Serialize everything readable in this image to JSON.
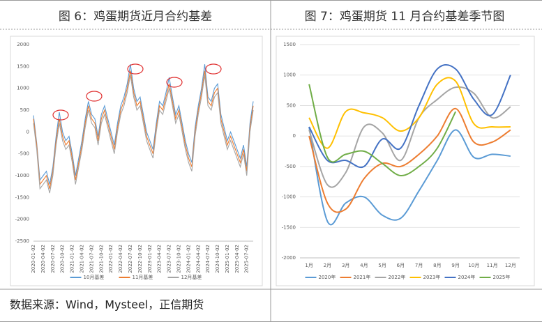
{
  "source": "数据来源：Wind，Mysteel，正信期货",
  "chart_data": [
    {
      "type": "line",
      "title": "图 6：鸡蛋期货近月合约基差",
      "smooth": false,
      "categories": [
        "2020-01-02",
        null,
        null,
        "2020-04-02",
        null,
        null,
        "2020-07-02",
        null,
        null,
        "2020-10-02",
        null,
        null,
        "2021-01-02",
        null,
        null,
        "2021-04-02",
        null,
        null,
        "2021-07-02",
        null,
        null,
        "2021-10-02",
        null,
        null,
        "2022-01-02",
        null,
        null,
        "2022-04-02",
        null,
        null,
        "2022-07-02",
        null,
        null,
        "2022-10-02",
        null,
        null,
        "2023-01-02",
        null,
        null,
        "2023-04-02",
        null,
        null,
        "2023-07-02",
        null,
        null,
        "2023-10-02",
        null,
        null,
        "2024-01-02",
        null,
        null,
        "2024-04-02",
        null,
        null,
        "2024-07-02",
        null,
        null,
        "2024-10-02",
        null,
        null,
        "2025-01-02",
        null,
        null,
        "2025-04-02",
        null,
        null,
        "2025-07-02",
        null,
        null
      ],
      "series": [
        {
          "name": "10月基差",
          "color": "#5b9bd5",
          "values": [
            380,
            -250,
            -1100,
            -1000,
            -900,
            -1200,
            -800,
            -100,
            450,
            0,
            -200,
            -100,
            -500,
            -1000,
            -600,
            -200,
            300,
            700,
            400,
            300,
            -100,
            400,
            600,
            300,
            0,
            -300,
            200,
            600,
            800,
            1100,
            1550,
            1000,
            700,
            800,
            400,
            0,
            -200,
            -400,
            200,
            700,
            600,
            900,
            1250,
            800,
            400,
            600,
            200,
            -200,
            -500,
            -700,
            100,
            600,
            1000,
            1550,
            800,
            700,
            1000,
            1100,
            400,
            100,
            -200,
            0,
            -200,
            -400,
            -600,
            -300,
            -800,
            200,
            700
          ]
        },
        {
          "name": "11月基差",
          "color": "#ed7d31",
          "values": [
            300,
            -300,
            -1200,
            -1100,
            -1000,
            -1300,
            -900,
            -200,
            300,
            -100,
            -300,
            -200,
            -600,
            -1100,
            -700,
            -300,
            200,
            600,
            300,
            200,
            -200,
            300,
            500,
            200,
            -100,
            -400,
            100,
            500,
            700,
            1000,
            1400,
            900,
            600,
            700,
            300,
            -100,
            -300,
            -500,
            100,
            600,
            500,
            800,
            1100,
            700,
            300,
            500,
            100,
            -300,
            -600,
            -800,
            0,
            500,
            900,
            1400,
            700,
            600,
            900,
            1000,
            300,
            0,
            -300,
            -100,
            -300,
            -500,
            -700,
            -400,
            -900,
            100,
            600
          ]
        },
        {
          "name": "12月基差",
          "color": "#a5a5a5",
          "values": [
            200,
            -400,
            -1300,
            -1200,
            -1100,
            -1400,
            -1000,
            -300,
            200,
            -200,
            -400,
            -300,
            -700,
            -1200,
            -800,
            -400,
            100,
            500,
            200,
            100,
            -300,
            200,
            400,
            100,
            -200,
            -500,
            0,
            400,
            600,
            900,
            1300,
            800,
            500,
            600,
            200,
            -200,
            -400,
            -600,
            0,
            500,
            400,
            700,
            1000,
            600,
            200,
            400,
            0,
            -400,
            -700,
            -900,
            -100,
            400,
            800,
            1300,
            600,
            500,
            800,
            900,
            200,
            -100,
            -400,
            -200,
            -400,
            -600,
            -800,
            -500,
            -1000,
            0,
            500
          ]
        }
      ],
      "ylim": [
        -2500,
        2000
      ],
      "yticks": [
        -2500,
        -2000,
        -1500,
        -1000,
        -500,
        0,
        500,
        1000,
        1500,
        2000
      ],
      "grid": false,
      "legend": "bottom"
    },
    {
      "type": "line",
      "title": "图 7：鸡蛋期货 11 月合约基差季节图",
      "smooth": true,
      "categories": [
        "1月",
        "2月",
        "3月",
        "4月",
        "5月",
        "6月",
        "7月",
        "8月",
        "9月",
        "10月",
        "11月",
        "12月"
      ],
      "series": [
        {
          "name": "2020年",
          "color": "#5b9bd5",
          "values": [
            150,
            -1400,
            -1100,
            -1000,
            -1300,
            -1350,
            -900,
            -400,
            100,
            -350,
            -300,
            -330
          ]
        },
        {
          "name": "2021年",
          "color": "#ed7d31",
          "values": [
            0,
            -1100,
            -1200,
            -700,
            -450,
            -500,
            -300,
            0,
            450,
            -100,
            -100,
            100
          ]
        },
        {
          "name": "2022年",
          "color": "#a5a5a5",
          "values": [
            100,
            -800,
            -600,
            150,
            50,
            -400,
            300,
            600,
            800,
            700,
            300,
            480
          ]
        },
        {
          "name": "2023年",
          "color": "#ffc000",
          "values": [
            300,
            -200,
            400,
            380,
            300,
            80,
            300,
            850,
            900,
            200,
            150,
            150
          ]
        },
        {
          "name": "2024年",
          "color": "#4472c4",
          "values": [
            150,
            -400,
            -400,
            -500,
            -50,
            -200,
            500,
            1100,
            1100,
            600,
            350,
            1000
          ]
        },
        {
          "name": "2025年",
          "color": "#70ad47",
          "values": [
            850,
            -350,
            -300,
            -250,
            -450,
            -650,
            -500,
            -200,
            400,
            null,
            null,
            null
          ]
        }
      ],
      "ylim": [
        -2000,
        1500
      ],
      "yticks": [
        -2000,
        -1500,
        -1000,
        -500,
        0,
        500,
        1000,
        1500
      ],
      "grid": true,
      "legend": "bottom"
    }
  ]
}
